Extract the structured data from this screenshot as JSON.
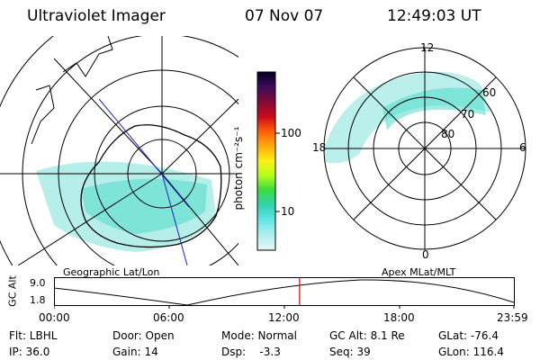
{
  "header": {
    "instrument": "Ultraviolet Imager",
    "date": "07 Nov 07",
    "time": "12:49:03 UT"
  },
  "left_map": {
    "caption": "Geographic Lat/Lon"
  },
  "right_map": {
    "caption": "Apex MLat/MLT",
    "mlt_labels": {
      "top": "12",
      "left": "18",
      "right": "6",
      "bottom": "0"
    },
    "lat_labels": [
      "60",
      "70",
      "80"
    ]
  },
  "colorbar": {
    "unit_label": "photon cm⁻²s⁻¹",
    "ticks": [
      "100",
      "10"
    ],
    "colors": [
      "#000022",
      "#3a0a5a",
      "#7a0a3a",
      "#c80a1a",
      "#ff5a0a",
      "#ffa50a",
      "#fff01a",
      "#b4ff1a",
      "#3cdc3c",
      "#32d2b4",
      "#64e6e6",
      "#b4f0f0",
      "#e6f5f5"
    ]
  },
  "timeline": {
    "axis_label": "GC Alt",
    "y_ticks": [
      "9.0",
      "1.8"
    ],
    "x_ticks": [
      "00:00",
      "06:00",
      "12:00",
      "18:00",
      "23:59"
    ],
    "current_time_fraction": 0.534
  },
  "status": {
    "col1": [
      "Flt: LBHL",
      "IP: 36.0"
    ],
    "col2": [
      "Door: Open",
      "Gain: 14"
    ],
    "col3": [
      "Mode: Normal",
      "Dsp:    -3.3"
    ],
    "col4": [
      "GC Alt: 8.1 Re",
      "Seq: 39"
    ],
    "col5": [
      "GLat: -76.4",
      "GLon: 116.4"
    ]
  }
}
